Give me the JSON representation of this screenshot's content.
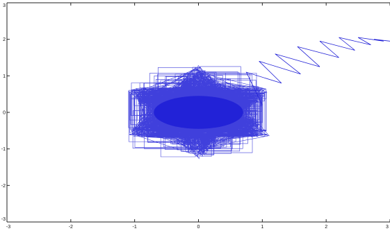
{
  "chart_data": {
    "type": "line",
    "title": "",
    "xlabel": "",
    "ylabel": "",
    "xlim": [
      -3,
      3
    ],
    "ylim": [
      -3,
      3
    ],
    "grid": false,
    "legend": "none",
    "x_ticks": [
      -3,
      -2,
      -1,
      0,
      1,
      2,
      3
    ],
    "y_ticks": [
      -3,
      -2,
      -1,
      0,
      1,
      2,
      3
    ],
    "x_tick_labels": [
      "-3",
      "-2",
      "-1",
      "0",
      "1",
      "2",
      "3"
    ],
    "y_tick_labels": [
      "-3",
      "-2",
      "-1",
      "0",
      "1",
      "2",
      "3"
    ],
    "series": [
      {
        "color": "#1f1fd6",
        "description_points": "dense star-shaped cluster centred at the origin",
        "star": {
          "center": [
            0,
            0
          ],
          "points": 6,
          "outer_radius": 1.3,
          "inner_radius": 0.55,
          "rotation_deg": 90
        },
        "tail_x": [
          1.0,
          0.75,
          1.3,
          0.95,
          1.6,
          1.2,
          1.9,
          1.55,
          2.2,
          1.9,
          2.45,
          2.2,
          2.7,
          2.5,
          2.9,
          2.75,
          3.0
        ],
        "tail_y": [
          0.2,
          1.1,
          0.8,
          1.4,
          1.05,
          1.6,
          1.25,
          1.8,
          1.5,
          1.95,
          1.7,
          2.05,
          1.85,
          2.05,
          1.95,
          2.0,
          1.95
        ]
      }
    ]
  }
}
